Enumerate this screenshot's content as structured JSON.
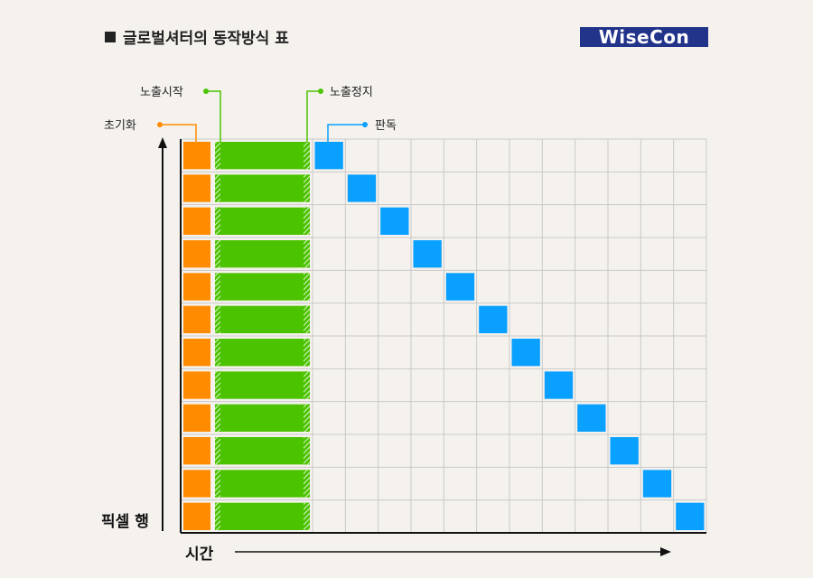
{
  "title": "글로벌셔터의 동작방식 표",
  "logo": "WiseCon",
  "labels": {
    "init": "초기화",
    "exposure_start": "노출시작",
    "exposure_stop": "노출정지",
    "readout": "판독"
  },
  "axes": {
    "y_label": "픽셀 행",
    "x_label": "시간"
  },
  "rows": 12,
  "timeline_columns": 12,
  "colors": {
    "init": "#ff8c00",
    "exposure": "#4cc300",
    "readout": "#0aa0ff",
    "grid": "#c9c9c9",
    "background": "#f5f2ee"
  }
}
